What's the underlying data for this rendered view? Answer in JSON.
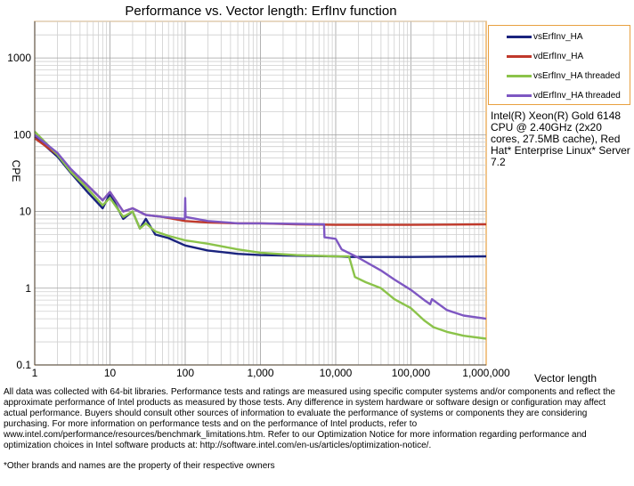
{
  "chart_data": {
    "type": "line",
    "title": "Performance vs. Vector length: ErfInv function",
    "xlabel": "Vector length",
    "ylabel": "CPE",
    "x_scale": "log",
    "y_scale": "log",
    "xlim": [
      1,
      1000000
    ],
    "ylim": [
      0.1,
      3000
    ],
    "x_ticks": [
      1,
      10,
      100,
      1000,
      10000,
      100000,
      1000000
    ],
    "x_tick_labels": [
      "1",
      "10",
      "100",
      "1,000",
      "10,000",
      "100,000",
      "1,000,000"
    ],
    "y_ticks": [
      0.1,
      1,
      10,
      100,
      1000
    ],
    "y_tick_labels": [
      "0.1",
      "1",
      "10",
      "100",
      "1000"
    ],
    "grid": true,
    "legend_position": "right",
    "series": [
      {
        "name": "vsErfInv_HA",
        "color": "#1a237e",
        "points": [
          [
            1,
            95
          ],
          [
            2,
            52
          ],
          [
            3,
            32
          ],
          [
            5,
            18
          ],
          [
            8,
            11
          ],
          [
            10,
            17
          ],
          [
            15,
            8
          ],
          [
            20,
            10
          ],
          [
            25,
            6
          ],
          [
            30,
            8
          ],
          [
            40,
            5
          ],
          [
            60,
            4.5
          ],
          [
            100,
            3.6
          ],
          [
            200,
            3.1
          ],
          [
            500,
            2.8
          ],
          [
            1000,
            2.7
          ],
          [
            3000,
            2.65
          ],
          [
            10000,
            2.6
          ],
          [
            15000,
            2.55
          ],
          [
            100000,
            2.55
          ],
          [
            1000000,
            2.6
          ]
        ]
      },
      {
        "name": "vdErfInv_HA",
        "color": "#c0392b",
        "points": [
          [
            1,
            90
          ],
          [
            2,
            55
          ],
          [
            3,
            35
          ],
          [
            5,
            22
          ],
          [
            8,
            14
          ],
          [
            10,
            18
          ],
          [
            15,
            10
          ],
          [
            20,
            11
          ],
          [
            30,
            9
          ],
          [
            50,
            8.5
          ],
          [
            100,
            7.5
          ],
          [
            200,
            7.2
          ],
          [
            500,
            7
          ],
          [
            1000,
            7
          ],
          [
            3000,
            6.8
          ],
          [
            10000,
            6.7
          ],
          [
            100000,
            6.7
          ],
          [
            1000000,
            6.8
          ]
        ]
      },
      {
        "name": "vsErfInv_HA threaded",
        "color": "#8bc34a",
        "points": [
          [
            1,
            110
          ],
          [
            2,
            55
          ],
          [
            3,
            33
          ],
          [
            5,
            20
          ],
          [
            8,
            12
          ],
          [
            10,
            15
          ],
          [
            15,
            8.5
          ],
          [
            20,
            10
          ],
          [
            25,
            6
          ],
          [
            30,
            7
          ],
          [
            40,
            5.5
          ],
          [
            60,
            4.8
          ],
          [
            100,
            4.2
          ],
          [
            200,
            3.8
          ],
          [
            500,
            3.2
          ],
          [
            1000,
            2.9
          ],
          [
            3000,
            2.7
          ],
          [
            10000,
            2.6
          ],
          [
            15000,
            2.6
          ],
          [
            18000,
            1.4
          ],
          [
            25000,
            1.2
          ],
          [
            40000,
            1
          ],
          [
            60000,
            0.72
          ],
          [
            100000,
            0.55
          ],
          [
            150000,
            0.38
          ],
          [
            200000,
            0.31
          ],
          [
            300000,
            0.27
          ],
          [
            500000,
            0.24
          ],
          [
            1000000,
            0.22
          ]
        ]
      },
      {
        "name": "vdErfInv_HA threaded",
        "color": "#7e57c2",
        "points": [
          [
            1,
            100
          ],
          [
            2,
            58
          ],
          [
            3,
            36
          ],
          [
            5,
            22
          ],
          [
            8,
            14
          ],
          [
            10,
            18
          ],
          [
            15,
            10
          ],
          [
            20,
            11
          ],
          [
            30,
            9
          ],
          [
            50,
            8.5
          ],
          [
            99,
            8
          ],
          [
            100,
            15
          ],
          [
            101,
            8.5
          ],
          [
            200,
            7.5
          ],
          [
            500,
            7
          ],
          [
            1000,
            7
          ],
          [
            3000,
            6.9
          ],
          [
            7000,
            6.8
          ],
          [
            7100,
            4.6
          ],
          [
            10000,
            4.4
          ],
          [
            12000,
            3.2
          ],
          [
            20000,
            2.5
          ],
          [
            40000,
            1.7
          ],
          [
            60000,
            1.3
          ],
          [
            100000,
            0.95
          ],
          [
            150000,
            0.7
          ],
          [
            180000,
            0.62
          ],
          [
            190000,
            0.72
          ],
          [
            300000,
            0.52
          ],
          [
            500000,
            0.44
          ],
          [
            1000000,
            0.4
          ]
        ]
      }
    ]
  },
  "legend": {
    "items": [
      {
        "label": "vsErfInv_HA",
        "color": "#1a237e"
      },
      {
        "label": "vdErfInv_HA",
        "color": "#c0392b"
      },
      {
        "label": "vsErfInv_HA threaded",
        "color": "#8bc34a"
      },
      {
        "label": "vdErfInv_HA threaded",
        "color": "#7e57c2"
      }
    ]
  },
  "system_info": "Intel(R) Xeon(R) Gold 6148 CPU @ 2.40GHz (2x20 cores, 27.5MB cache), Red Hat* Enterprise Linux* Server 7.2",
  "disclaimer": "All data was collected with 64-bit libraries. Performance tests and ratings are measured using specific computer systems and/or components and reflect the approximate performance of Intel products as measured by those tests. Any difference in system hardware or software design or configuration may affect actual performance. Buyers should consult other sources of information to evaluate the performance of systems or components they are considering purchasing. For more information on performance tests and on the performance of Intel products, refer to www.intel.com/performance/resources/benchmark_limitations.htm. Refer to our Optimization Notice for more information regarding performance and optimization choices in Intel software products at: http://software.intel.com/en-us/articles/optimization-notice/.",
  "trademark": "*Other brands and names are the property of their respective owners"
}
